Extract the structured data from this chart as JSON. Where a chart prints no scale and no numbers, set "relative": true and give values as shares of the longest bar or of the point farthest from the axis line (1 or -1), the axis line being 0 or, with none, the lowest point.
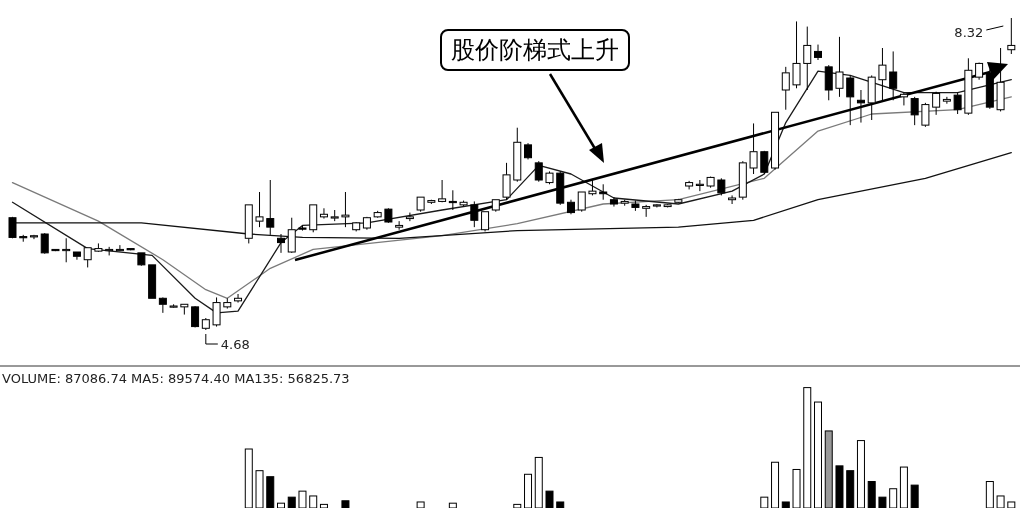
{
  "chart_data": [
    {
      "type": "candlestick",
      "categories": [
        null,
        null,
        null,
        null,
        null,
        null,
        null,
        null,
        null,
        null,
        null,
        null,
        null,
        null,
        null,
        null,
        null,
        null,
        null,
        null,
        null,
        null,
        null,
        null,
        null,
        null,
        null,
        null,
        null,
        null,
        null,
        null,
        null,
        null,
        null,
        null,
        null,
        null,
        null,
        null,
        null,
        null,
        null,
        null,
        null,
        null,
        null,
        null,
        null,
        null,
        null,
        null,
        null,
        null,
        null,
        null,
        null,
        null,
        null,
        null,
        null,
        null,
        null,
        null,
        null,
        null,
        null,
        null,
        null,
        null,
        null,
        null,
        null,
        null,
        null,
        null,
        null,
        null,
        null,
        null,
        null,
        null,
        null,
        null,
        null,
        null,
        null,
        null,
        null,
        null,
        null,
        null,
        null,
        null
      ],
      "ohlc": [
        [
          5.99,
          6.0,
          5.75,
          5.76
        ],
        [
          5.77,
          5.79,
          5.71,
          5.76
        ],
        [
          5.77,
          5.79,
          5.74,
          5.78
        ],
        [
          5.8,
          5.81,
          5.57,
          5.58
        ],
        [
          5.62,
          5.62,
          5.6,
          5.61
        ],
        [
          5.61,
          5.75,
          5.47,
          5.62
        ],
        [
          5.59,
          5.59,
          5.5,
          5.54
        ],
        [
          5.5,
          5.64,
          5.41,
          5.64
        ],
        [
          5.6,
          5.69,
          5.59,
          5.63
        ],
        [
          5.61,
          5.65,
          5.55,
          5.62
        ],
        [
          5.61,
          5.67,
          5.6,
          5.62
        ],
        [
          5.63,
          5.63,
          5.61,
          5.62
        ],
        [
          5.58,
          5.58,
          5.43,
          5.44
        ],
        [
          5.44,
          5.44,
          5.05,
          5.05
        ],
        [
          5.05,
          5.06,
          4.88,
          4.98
        ],
        [
          4.95,
          4.98,
          4.94,
          4.96
        ],
        [
          4.95,
          4.98,
          4.86,
          4.98
        ],
        [
          4.95,
          4.96,
          4.71,
          4.72
        ],
        [
          4.7,
          4.82,
          4.68,
          4.8
        ],
        [
          4.74,
          5.06,
          4.72,
          5.0
        ],
        [
          4.95,
          5.05,
          4.93,
          5.0
        ],
        [
          5.02,
          5.1,
          5.0,
          5.05
        ],
        [
          5.75,
          6.14,
          5.69,
          6.14
        ],
        [
          5.95,
          6.29,
          5.88,
          6.0
        ],
        [
          5.98,
          6.43,
          5.79,
          5.88
        ],
        [
          5.75,
          5.8,
          5.58,
          5.7
        ],
        [
          5.59,
          5.99,
          5.58,
          5.85
        ],
        [
          5.87,
          5.9,
          5.84,
          5.86
        ],
        [
          5.85,
          6.14,
          5.82,
          6.14
        ],
        [
          6.0,
          6.1,
          5.98,
          6.03
        ],
        [
          6.0,
          6.08,
          5.95,
          6.0
        ],
        [
          6.0,
          6.29,
          5.88,
          6.02
        ],
        [
          5.85,
          5.94,
          5.83,
          5.93
        ],
        [
          5.87,
          6.0,
          5.85,
          5.99
        ],
        [
          6.0,
          6.07,
          5.99,
          6.05
        ],
        [
          6.09,
          6.1,
          5.93,
          5.94
        ],
        [
          5.88,
          5.95,
          5.85,
          5.9
        ],
        [
          5.98,
          6.05,
          5.95,
          6.0
        ],
        [
          6.08,
          6.23,
          6.06,
          6.23
        ],
        [
          6.17,
          6.2,
          6.15,
          6.19
        ],
        [
          6.18,
          6.43,
          6.17,
          6.21
        ],
        [
          6.18,
          6.31,
          6.08,
          6.17
        ],
        [
          6.14,
          6.19,
          6.12,
          6.17
        ],
        [
          6.14,
          6.18,
          5.88,
          5.96
        ],
        [
          5.85,
          6.06,
          5.83,
          6.06
        ],
        [
          6.08,
          6.2,
          6.06,
          6.2
        ],
        [
          6.23,
          6.63,
          6.2,
          6.49
        ],
        [
          6.43,
          7.04,
          6.41,
          6.87
        ],
        [
          6.84,
          6.86,
          6.67,
          6.69
        ],
        [
          6.63,
          6.65,
          6.41,
          6.43
        ],
        [
          6.4,
          6.53,
          6.38,
          6.51
        ],
        [
          6.51,
          6.53,
          6.14,
          6.16
        ],
        [
          6.17,
          6.2,
          6.03,
          6.05
        ],
        [
          6.08,
          6.29,
          6.06,
          6.29
        ],
        [
          6.27,
          6.43,
          6.25,
          6.3
        ],
        [
          6.29,
          6.38,
          6.2,
          6.27
        ],
        [
          6.2,
          6.23,
          6.12,
          6.15
        ],
        [
          6.16,
          6.2,
          6.13,
          6.18
        ],
        [
          6.15,
          6.19,
          6.07,
          6.11
        ],
        [
          6.1,
          6.14,
          6.0,
          6.12
        ],
        [
          6.13,
          6.15,
          6.11,
          6.14
        ],
        [
          6.12,
          6.15,
          6.11,
          6.14
        ],
        [
          6.17,
          6.21,
          6.16,
          6.2
        ],
        [
          6.36,
          6.42,
          6.32,
          6.4
        ],
        [
          6.37,
          6.43,
          6.3,
          6.38
        ],
        [
          6.36,
          6.47,
          6.34,
          6.46
        ],
        [
          6.43,
          6.45,
          6.25,
          6.28
        ],
        [
          6.2,
          6.25,
          6.15,
          6.22
        ],
        [
          6.23,
          6.65,
          6.2,
          6.63
        ],
        [
          6.57,
          7.09,
          6.5,
          6.76
        ],
        [
          6.76,
          6.77,
          6.5,
          6.52
        ],
        [
          6.57,
          7.22,
          6.55,
          7.22
        ],
        [
          7.48,
          7.75,
          7.25,
          7.68
        ],
        [
          7.54,
          8.28,
          7.5,
          7.79
        ],
        [
          7.79,
          8.22,
          7.48,
          8.0
        ],
        [
          7.93,
          8.01,
          7.83,
          7.86
        ],
        [
          7.75,
          7.77,
          7.36,
          7.48
        ],
        [
          7.5,
          8.1,
          7.4,
          7.69
        ],
        [
          7.62,
          7.65,
          7.07,
          7.4
        ],
        [
          7.36,
          7.48,
          7.1,
          7.33
        ],
        [
          7.33,
          7.65,
          7.13,
          7.63
        ],
        [
          7.6,
          7.97,
          7.36,
          7.77
        ],
        [
          7.69,
          7.93,
          7.36,
          7.5
        ],
        [
          7.4,
          7.45,
          7.3,
          7.43
        ],
        [
          7.38,
          7.4,
          7.07,
          7.19
        ],
        [
          7.07,
          7.33,
          7.05,
          7.31
        ],
        [
          7.28,
          7.46,
          7.19,
          7.44
        ],
        [
          7.35,
          7.4,
          7.32,
          7.37
        ],
        [
          7.42,
          7.45,
          7.2,
          7.25
        ],
        [
          7.21,
          7.85,
          7.19,
          7.71
        ],
        [
          7.63,
          7.8,
          7.6,
          7.79
        ],
        [
          7.68,
          7.72,
          7.26,
          7.28
        ],
        [
          7.25,
          7.97,
          7.23,
          7.57
        ],
        [
          7.95,
          8.32,
          7.9,
          8.0
        ]
      ],
      "series": [
        {
          "type": "line",
          "color": "#7a7a7a",
          "values": [
            6.4,
            null,
            null,
            null,
            null,
            null,
            null,
            null,
            5.95,
            null,
            null,
            null,
            null,
            null,
            5.5,
            null,
            null,
            null,
            5.15,
            null,
            5.05,
            null,
            null,
            null,
            5.4,
            null,
            null,
            null,
            5.62,
            null,
            null,
            null,
            null,
            null,
            null,
            null,
            null,
            null,
            null,
            null,
            5.78,
            null,
            null,
            null,
            null,
            null,
            null,
            5.92,
            null,
            null,
            null,
            null,
            null,
            null,
            null,
            6.15,
            null,
            null,
            null,
            null,
            null,
            null,
            6.2,
            null,
            null,
            null,
            null,
            null,
            null,
            null,
            6.45,
            null,
            null,
            null,
            null,
            7.0,
            null,
            null,
            null,
            null,
            7.2,
            null,
            null,
            null,
            null,
            null,
            null,
            null,
            7.25,
            null,
            null,
            null,
            null,
            7.4
          ]
        },
        {
          "type": "line",
          "color": "#1a1a1a",
          "values": [
            6.17,
            null,
            null,
            null,
            null,
            null,
            null,
            5.63,
            null,
            null,
            null,
            null,
            null,
            5.55,
            null,
            null,
            null,
            5.05,
            null,
            4.88,
            null,
            4.9,
            null,
            5.3,
            null,
            5.7,
            null,
            5.9,
            null,
            null,
            null,
            null,
            null,
            5.93,
            null,
            null,
            null,
            null,
            null,
            null,
            6.08,
            null,
            null,
            null,
            null,
            null,
            6.2,
            null,
            null,
            6.6,
            null,
            null,
            6.5,
            null,
            null,
            null,
            6.22,
            null,
            null,
            null,
            null,
            null,
            6.15,
            null,
            null,
            null,
            null,
            6.3,
            null,
            null,
            6.5,
            null,
            7.1,
            null,
            null,
            7.7,
            null,
            null,
            7.65,
            null,
            null,
            null,
            null,
            7.45,
            null,
            null,
            null,
            null,
            7.45,
            null,
            null,
            null,
            null,
            7.6
          ]
        },
        {
          "type": "line",
          "color": "#111111",
          "values": [
            5.93,
            null,
            null,
            null,
            null,
            null,
            null,
            null,
            null,
            null,
            null,
            null,
            5.93,
            null,
            null,
            null,
            null,
            null,
            null,
            null,
            null,
            null,
            5.8,
            null,
            null,
            null,
            null,
            5.76,
            null,
            null,
            null,
            null,
            null,
            null,
            null,
            null,
            5.75,
            null,
            null,
            null,
            null,
            null,
            null,
            null,
            null,
            null,
            null,
            5.84,
            null,
            null,
            null,
            null,
            null,
            null,
            null,
            null,
            null,
            null,
            null,
            null,
            null,
            null,
            5.88,
            null,
            null,
            null,
            null,
            null,
            null,
            5.96,
            null,
            null,
            null,
            null,
            null,
            6.2,
            null,
            null,
            null,
            null,
            null,
            null,
            null,
            null,
            null,
            6.45,
            null,
            null,
            null,
            null,
            null,
            null,
            null,
            6.75
          ]
        }
      ],
      "annotations": [
        "股价阶梯式上升",
        "4.68",
        "8.32"
      ]
    },
    {
      "type": "bar",
      "relative": true,
      "title": "VOLUME: 87086.74  MA5: 89574.40  MA135: 56825.73",
      "categories": [
        null,
        null,
        null,
        null,
        null,
        null,
        null,
        null,
        null,
        null,
        null,
        null,
        null,
        null,
        null,
        null,
        null,
        null,
        null,
        null,
        null,
        null,
        null,
        null,
        null,
        null,
        null,
        null,
        null,
        null,
        null,
        null,
        null,
        null,
        null,
        null,
        null,
        null,
        null,
        null,
        null,
        null,
        null,
        null,
        null,
        null,
        null,
        null,
        null,
        null,
        null,
        null,
        null,
        null,
        null,
        null,
        null,
        null,
        null,
        null,
        null,
        null,
        null,
        null,
        null,
        null,
        null,
        null,
        null,
        null,
        null,
        null,
        null,
        null,
        null,
        null,
        null,
        null,
        null,
        null,
        null,
        null,
        null,
        null,
        null,
        null,
        null,
        null,
        null,
        null,
        null,
        null,
        null,
        null
      ],
      "values": [
        null,
        null,
        null,
        null,
        null,
        null,
        null,
        null,
        null,
        null,
        null,
        null,
        null,
        null,
        null,
        null,
        null,
        null,
        null,
        null,
        null,
        null,
        0.49,
        0.31,
        0.26,
        0.04,
        0.09,
        0.14,
        0.1,
        0.03,
        null,
        0.06,
        null,
        null,
        null,
        null,
        null,
        null,
        0.05,
        null,
        null,
        0.04,
        null,
        null,
        null,
        null,
        null,
        0.03,
        0.28,
        0.42,
        0.14,
        0.05,
        null,
        null,
        null,
        null,
        null,
        null,
        null,
        null,
        null,
        null,
        null,
        null,
        null,
        null,
        null,
        null,
        null,
        null,
        0.09,
        0.38,
        0.05,
        0.32,
        1,
        0.88,
        0.64,
        0.35,
        0.31,
        0.56,
        0.22,
        0.09,
        0.16,
        0.34,
        0.19,
        null,
        null,
        null,
        null,
        null,
        null,
        0.22,
        0.1,
        0.05
      ],
      "colors": [
        null,
        null,
        null,
        null,
        null,
        null,
        null,
        null,
        null,
        null,
        null,
        null,
        null,
        null,
        null,
        null,
        null,
        null,
        null,
        null,
        null,
        null,
        "#ffffff",
        "#ffffff",
        "#000000",
        "#ffffff",
        "#000000",
        "#ffffff",
        "#ffffff",
        "#ffffff",
        null,
        "#000000",
        null,
        null,
        null,
        null,
        null,
        null,
        "#ffffff",
        null,
        null,
        "#ffffff",
        null,
        null,
        null,
        null,
        null,
        "#ffffff",
        "#ffffff",
        "#ffffff",
        "#000000",
        "#000000",
        null,
        null,
        null,
        null,
        null,
        null,
        null,
        null,
        null,
        null,
        null,
        null,
        null,
        null,
        null,
        null,
        null,
        null,
        "#ffffff",
        "#ffffff",
        "#000000",
        "#ffffff",
        "#ffffff",
        "#ffffff",
        "#999999",
        "#000000",
        "#000000",
        "#ffffff",
        "#000000",
        "#000000",
        "#ffffff",
        "#ffffff",
        "#000000",
        null,
        null,
        null,
        null,
        null,
        null,
        "#ffffff",
        "#ffffff",
        "#ffffff"
      ]
    }
  ]
}
